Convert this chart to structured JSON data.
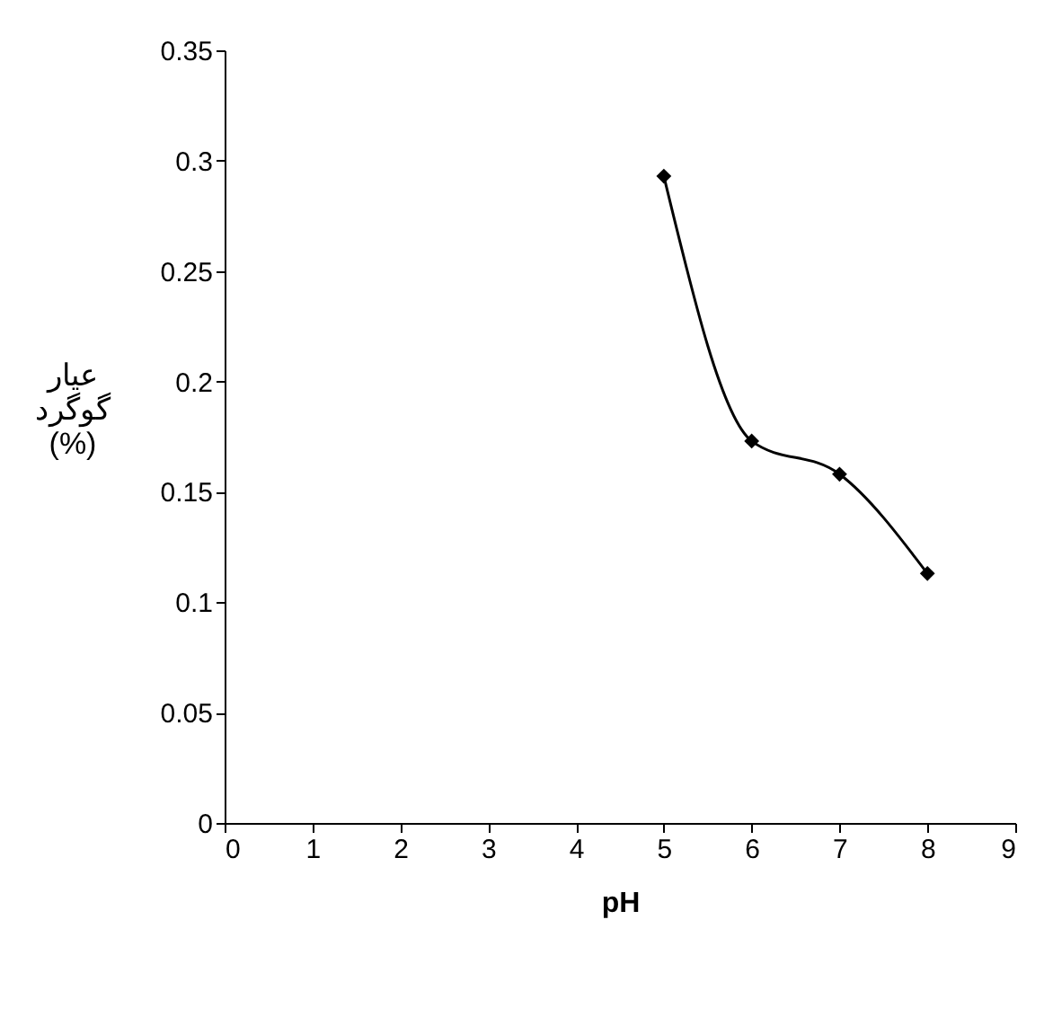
{
  "chart_data": {
    "type": "line",
    "xlabel": "pH",
    "ylabel": "عیار گوگرد (%)",
    "x": [
      5,
      6,
      7,
      8
    ],
    "series": [
      {
        "color": "#000000",
        "values": [
          0.293,
          0.173,
          0.158,
          0.113
        ]
      }
    ],
    "xlim": [
      0,
      9
    ],
    "xticks": [
      0,
      1,
      2,
      3,
      4,
      5,
      6,
      7,
      8,
      9
    ],
    "ylim": [
      0,
      0.35
    ],
    "yticks": [
      0,
      0.05,
      0.1,
      0.15,
      0.2,
      0.25,
      0.3,
      0.35
    ],
    "grid": false,
    "legend": false,
    "marker": "diamond",
    "line_style": "solid"
  }
}
